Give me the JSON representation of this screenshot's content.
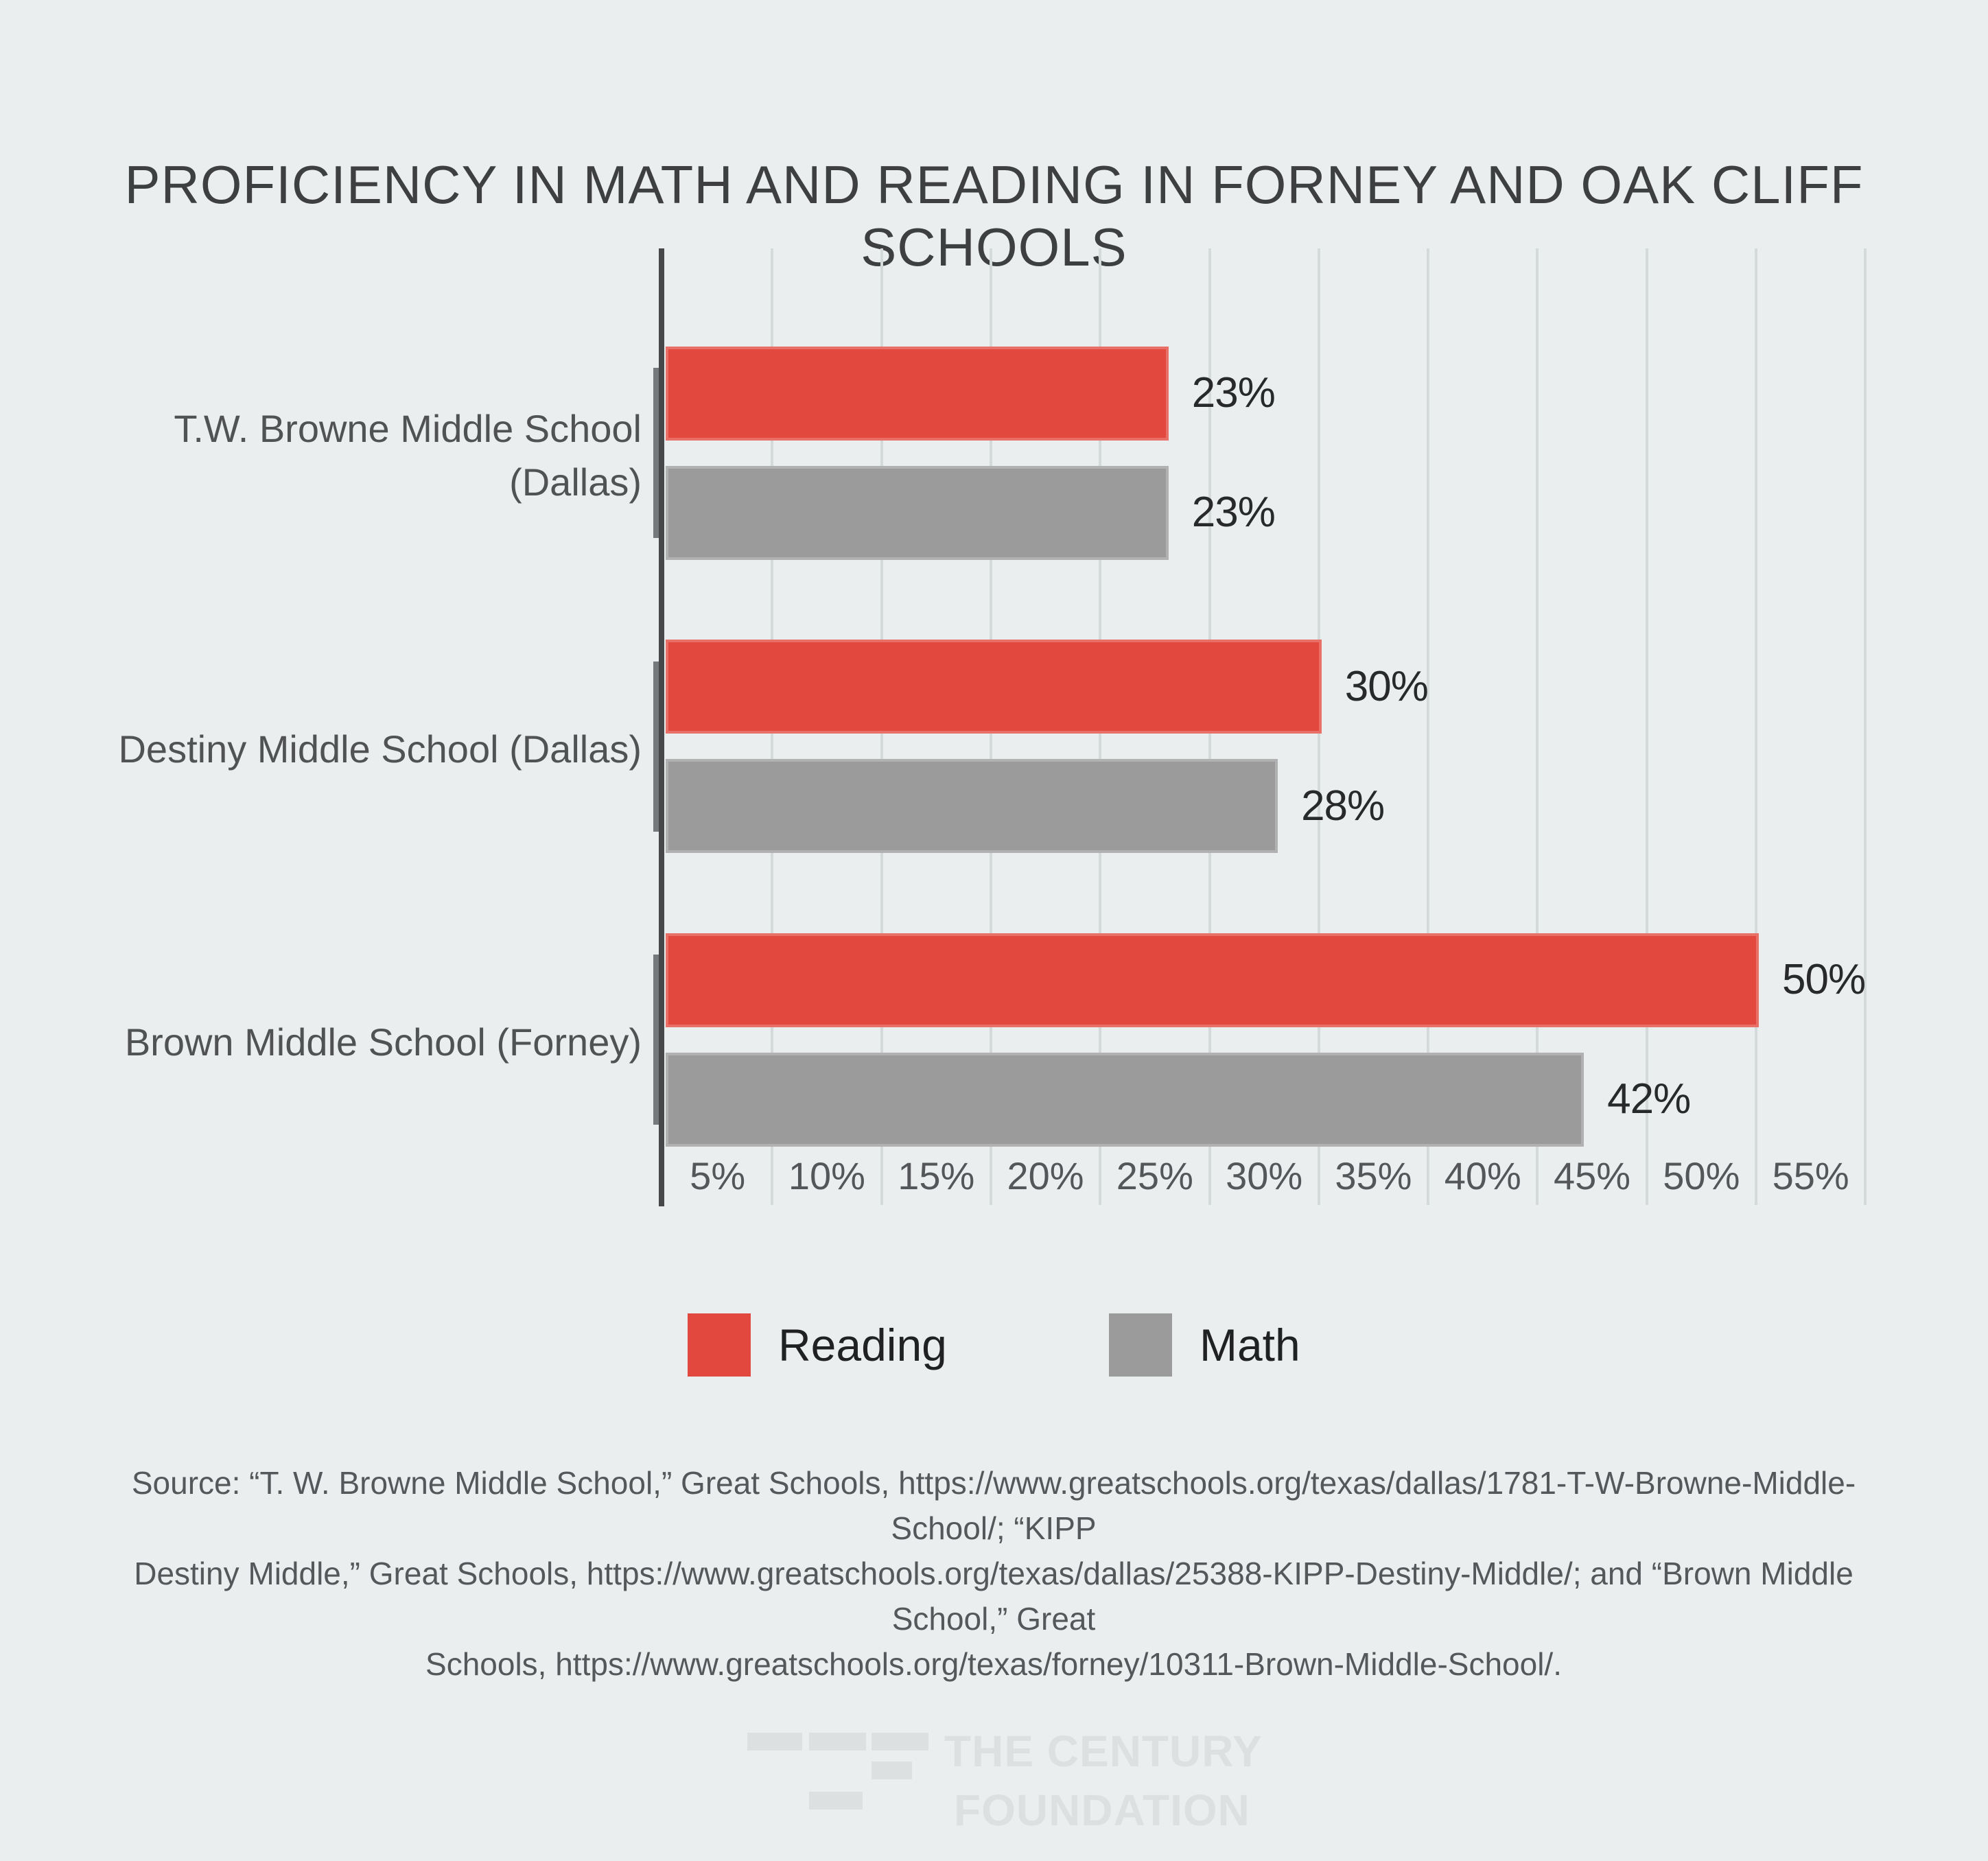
{
  "title": "PROFICIENCY IN MATH AND READING IN FORNEY AND OAK CLIFF SCHOOLS",
  "chart_data": {
    "type": "bar",
    "orientation": "horizontal",
    "categories": [
      "T.W. Browne Middle School (Dallas)",
      "Destiny Middle School (Dallas)",
      "Brown Middle School (Forney)"
    ],
    "category_label_lines": [
      [
        "T.W. Browne Middle School",
        "(Dallas)"
      ],
      [
        "Destiny Middle School (Dallas)"
      ],
      [
        "Brown Middle School (Forney)"
      ]
    ],
    "series": [
      {
        "name": "Reading",
        "color": "#E2483D",
        "values": [
          23,
          30,
          50
        ]
      },
      {
        "name": "Math",
        "color": "#9B9B9B",
        "values": [
          23,
          28,
          42
        ]
      }
    ],
    "data_labels": [
      [
        "23%",
        "23%"
      ],
      [
        "30%",
        "28%"
      ],
      [
        "50%",
        "42%"
      ]
    ],
    "x_tick_labels": [
      "5%",
      "10%",
      "15%",
      "20%",
      "25%",
      "30%",
      "35%",
      "40%",
      "45%",
      "50%",
      "55%"
    ],
    "x_axis_unit": "%",
    "x_min": 0,
    "x_max": 55,
    "grid": "vertical",
    "legend_position": "bottom",
    "title": "PROFICIENCY IN MATH AND READING IN FORNEY AND OAK CLIFF SCHOOLS"
  },
  "legend": {
    "items": [
      {
        "label": "Reading",
        "color": "#E2483D"
      },
      {
        "label": "Math",
        "color": "#9B9B9B"
      }
    ]
  },
  "source": {
    "lines": [
      "Source: “T. W. Browne Middle School,” Great Schools, https://www.greatschools.org/texas/dallas/1781-T-W-Browne-Middle-School/; “KIPP",
      "Destiny Middle,” Great Schools, https://www.greatschools.org/texas/dallas/25388-KIPP-Destiny-Middle/; and “Brown Middle School,” Great",
      "Schools, https://www.greatschools.org/texas/forney/10311-Brown-Middle-School/."
    ]
  },
  "logo": {
    "line1": "THE CENTURY",
    "line2": "FOUNDATION"
  },
  "colors": {
    "background": "#EBEEEF",
    "reading": "#E2483D",
    "math": "#9B9B9B",
    "gridline": "#D4D9DA",
    "axis": "#46484A",
    "title_text": "#3E3F41",
    "label_text": "#505254",
    "value_text": "#28292B",
    "source_text": "#55585A",
    "logo": "#DCE0E1"
  }
}
